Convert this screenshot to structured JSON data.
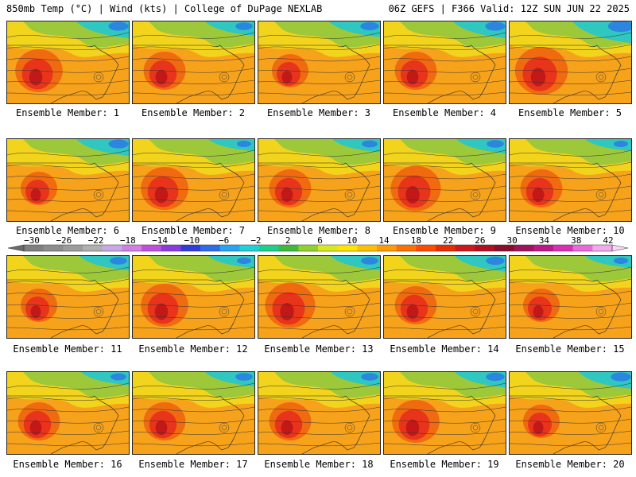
{
  "header": {
    "left": "850mb Temp (°C) | Wind (kts) | College of DuPage NEXLAB",
    "right": "06Z GEFS | F366 Valid: 12Z SUN JUN 22 2025"
  },
  "panels": [
    {
      "label": "Ensemble Member: 1",
      "cold_ne": 0.7,
      "heat": 0.7
    },
    {
      "label": "Ensemble Member: 2",
      "cold_ne": 0.6,
      "heat": 0.6
    },
    {
      "label": "Ensemble Member: 3",
      "cold_ne": 0.65,
      "heat": 0.5
    },
    {
      "label": "Ensemble Member: 4",
      "cold_ne": 0.7,
      "heat": 0.6
    },
    {
      "label": "Ensemble Member: 5",
      "cold_ne": 0.9,
      "heat": 0.8
    },
    {
      "label": "Ensemble Member: 6",
      "cold_ne": 0.7,
      "heat": 0.5
    },
    {
      "label": "Ensemble Member: 7",
      "cold_ne": 0.5,
      "heat": 0.7
    },
    {
      "label": "Ensemble Member: 8",
      "cold_ne": 0.55,
      "heat": 0.6
    },
    {
      "label": "Ensemble Member: 9",
      "cold_ne": 0.6,
      "heat": 0.75
    },
    {
      "label": "Ensemble Member: 10",
      "cold_ne": 0.5,
      "heat": 0.6
    },
    {
      "label": "Ensemble Member: 11",
      "cold_ne": 0.6,
      "heat": 0.5
    },
    {
      "label": "Ensemble Member: 12",
      "cold_ne": 0.5,
      "heat": 0.7
    },
    {
      "label": "Ensemble Member: 13",
      "cold_ne": 0.6,
      "heat": 0.75
    },
    {
      "label": "Ensemble Member: 14",
      "cold_ne": 0.65,
      "heat": 0.6
    },
    {
      "label": "Ensemble Member: 15",
      "cold_ne": 0.5,
      "heat": 0.5
    },
    {
      "label": "Ensemble Member: 16",
      "cold_ne": 0.55,
      "heat": 0.6
    },
    {
      "label": "Ensemble Member: 17",
      "cold_ne": 0.6,
      "heat": 0.6
    },
    {
      "label": "Ensemble Member: 18",
      "cold_ne": 0.6,
      "heat": 0.6
    },
    {
      "label": "Ensemble Member: 19",
      "cold_ne": 0.65,
      "heat": 0.7
    },
    {
      "label": "Ensemble Member: 20",
      "cold_ne": 0.7,
      "heat": 0.5
    }
  ],
  "colorbar": {
    "labels": [
      "−30",
      "−26",
      "−22",
      "−18",
      "−14",
      "−10",
      "−6",
      "−2",
      "2",
      "6",
      "10",
      "14",
      "18",
      "22",
      "26",
      "30",
      "34",
      "38",
      "42"
    ],
    "colors": [
      "#7f7f7f",
      "#8c8c8c",
      "#9c9c9c",
      "#b0b0b0",
      "#c8a8e8",
      "#d27ee6",
      "#c24ee0",
      "#8a3ce0",
      "#2f3dd8",
      "#2d6be8",
      "#25a6f2",
      "#1fd0d8",
      "#1ecf8c",
      "#3dbb3d",
      "#8fd22e",
      "#d8e81c",
      "#ffe400",
      "#ffc000",
      "#ff9a00",
      "#ff7000",
      "#ff4a00",
      "#e82c00",
      "#cc1818",
      "#b01020",
      "#8a0e2c",
      "#a0125a",
      "#c0188a",
      "#dc2cb8",
      "#ea6adc",
      "#f4a8ee"
    ]
  }
}
